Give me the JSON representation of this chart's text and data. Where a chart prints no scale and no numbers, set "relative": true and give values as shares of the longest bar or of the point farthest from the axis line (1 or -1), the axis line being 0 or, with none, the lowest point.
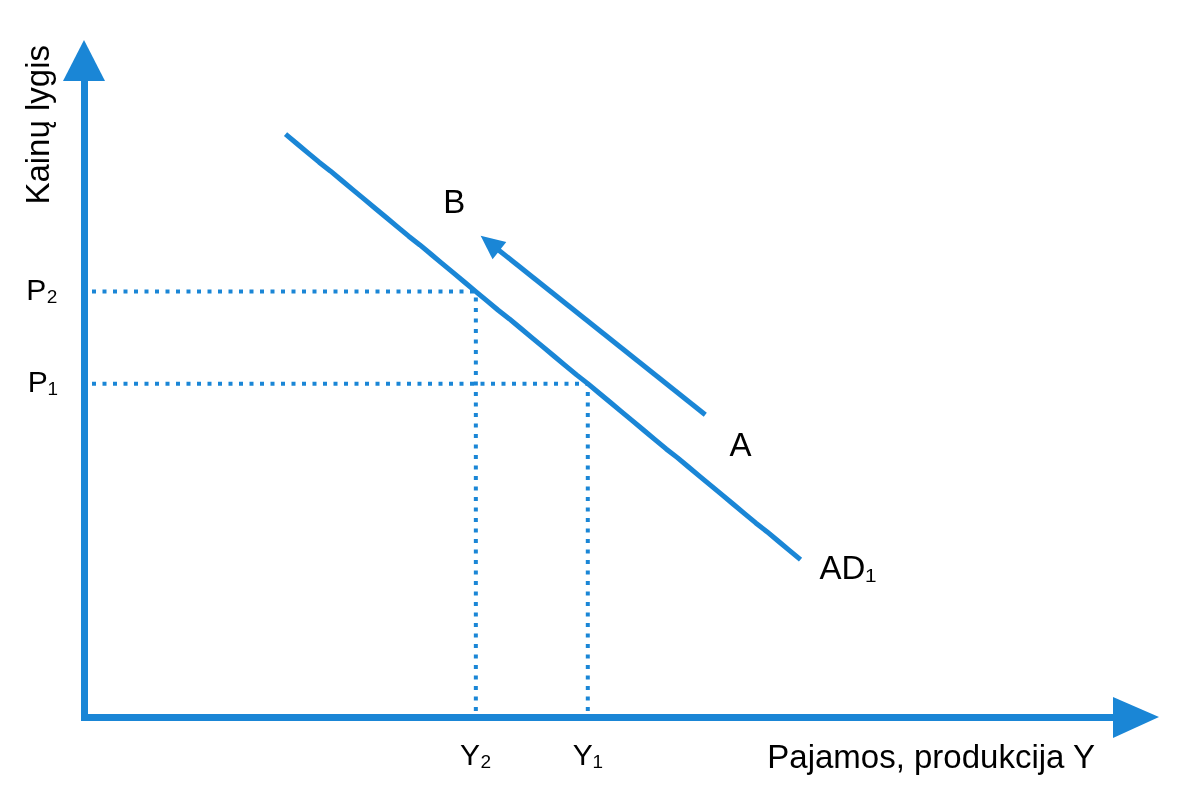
{
  "chart_data": {
    "type": "line",
    "relative": true,
    "xlabel": "Pajamos, produkcija Y",
    "ylabel": "Kainų lygis",
    "categories": [
      null,
      null,
      null,
      null,
      null,
      null,
      null,
      null,
      null,
      null,
      null,
      null,
      null,
      null,
      null,
      null,
      null,
      null,
      null,
      null,
      null,
      null,
      null,
      null,
      null,
      null,
      null,
      null,
      null,
      null,
      null,
      null,
      null,
      null,
      null,
      "Y₂",
      null,
      null,
      null,
      null,
      null,
      null,
      null,
      null,
      null,
      "Y₁",
      null,
      null,
      null,
      null,
      null,
      null,
      null,
      null,
      null,
      null,
      null,
      null,
      null,
      null,
      null,
      null,
      null,
      null,
      null,
      null,
      null,
      null,
      null,
      null,
      null,
      null,
      null,
      null,
      null,
      null,
      null,
      null,
      null,
      null,
      null,
      null,
      null,
      null,
      null,
      null,
      null,
      null,
      null,
      null,
      null,
      null,
      null
    ],
    "series": [
      {
        "name": "AD₁",
        "color": "#1a86d6",
        "line_style": "solid",
        "values": [
          null,
          null,
          null,
          null,
          null,
          null,
          null,
          null,
          null,
          null,
          null,
          null,
          null,
          null,
          null,
          null,
          null,
          null,
          1,
          0.984,
          0.968,
          0.952,
          0.937,
          0.921,
          0.905,
          0.889,
          0.873,
          0.857,
          0.841,
          0.825,
          0.81,
          0.794,
          0.778,
          0.762,
          0.746,
          0.73,
          0.714,
          0.698,
          0.683,
          0.667,
          0.651,
          0.635,
          0.619,
          0.603,
          0.587,
          0.572,
          0.556,
          0.54,
          0.524,
          0.508,
          0.492,
          0.476,
          0.46,
          0.445,
          0.429,
          0.413,
          0.397,
          0.381,
          0.365,
          0.349,
          0.333,
          0.318,
          0.302,
          0.286,
          0.27,
          null,
          null,
          null,
          null,
          null,
          null,
          null,
          null,
          null,
          null,
          null,
          null,
          null,
          null,
          null,
          null,
          null,
          null,
          null,
          null,
          null,
          null,
          null,
          null,
          null,
          null,
          null,
          null
        ]
      }
    ],
    "ref_lines": [
      {
        "axis": "y",
        "value": 0.73,
        "label": "P₂",
        "color": "#1a86d6",
        "line_style": "dotted"
      },
      {
        "axis": "y",
        "value": 0.572,
        "label": "P₁",
        "color": "#1a86d6",
        "line_style": "dotted"
      },
      {
        "axis": "x",
        "value": "Y₂",
        "color": "#1a86d6",
        "line_style": "dotted"
      },
      {
        "axis": "x",
        "value": "Y₁",
        "color": "#1a86d6",
        "line_style": "dotted"
      }
    ],
    "annotations": [
      "B",
      "A"
    ],
    "marker": "none",
    "grid": false,
    "legend": false
  }
}
